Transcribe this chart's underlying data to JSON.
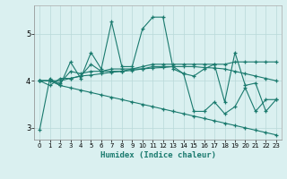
{
  "title": "",
  "xlabel": "Humidex (Indice chaleur)",
  "xlim": [
    -0.5,
    23.5
  ],
  "ylim": [
    2.75,
    5.6
  ],
  "yticks": [
    3,
    4,
    5
  ],
  "xticks": [
    0,
    1,
    2,
    3,
    4,
    5,
    6,
    7,
    8,
    9,
    10,
    11,
    12,
    13,
    14,
    15,
    16,
    17,
    18,
    19,
    20,
    21,
    22,
    23
  ],
  "line_color": "#1a7a6e",
  "bg_color": "#daf0f0",
  "grid_color": "#b8d8d8",
  "lines": [
    [
      2.95,
      4.05,
      3.9,
      4.4,
      4.05,
      4.6,
      4.25,
      5.25,
      4.3,
      4.3,
      5.1,
      5.35,
      5.35,
      4.25,
      4.15,
      4.1,
      4.25,
      4.35,
      3.55,
      4.6,
      3.9,
      3.95,
      3.35,
      3.6
    ],
    [
      4.0,
      4.0,
      3.95,
      4.2,
      4.15,
      4.2,
      4.2,
      4.25,
      4.25,
      4.25,
      4.3,
      4.35,
      4.35,
      4.35,
      4.35,
      4.35,
      4.35,
      4.35,
      4.35,
      4.4,
      4.4,
      4.4,
      4.4,
      4.4
    ],
    [
      4.0,
      4.0,
      4.0,
      4.05,
      4.1,
      4.12,
      4.15,
      4.18,
      4.2,
      4.22,
      4.25,
      4.27,
      4.28,
      4.3,
      4.3,
      4.3,
      4.28,
      4.27,
      4.25,
      4.2,
      4.15,
      4.1,
      4.05,
      4.0
    ],
    [
      4.0,
      4.0,
      3.9,
      3.85,
      3.8,
      3.75,
      3.7,
      3.65,
      3.6,
      3.55,
      3.5,
      3.45,
      3.4,
      3.35,
      3.3,
      3.25,
      3.2,
      3.15,
      3.1,
      3.05,
      3.0,
      2.95,
      2.9,
      2.85
    ],
    [
      4.0,
      3.9,
      4.05,
      4.05,
      4.1,
      4.35,
      4.2,
      4.2,
      4.2,
      4.25,
      4.25,
      4.3,
      4.3,
      4.3,
      4.15,
      3.35,
      3.35,
      3.55,
      3.3,
      3.45,
      3.85,
      3.35,
      3.6,
      3.6
    ]
  ]
}
